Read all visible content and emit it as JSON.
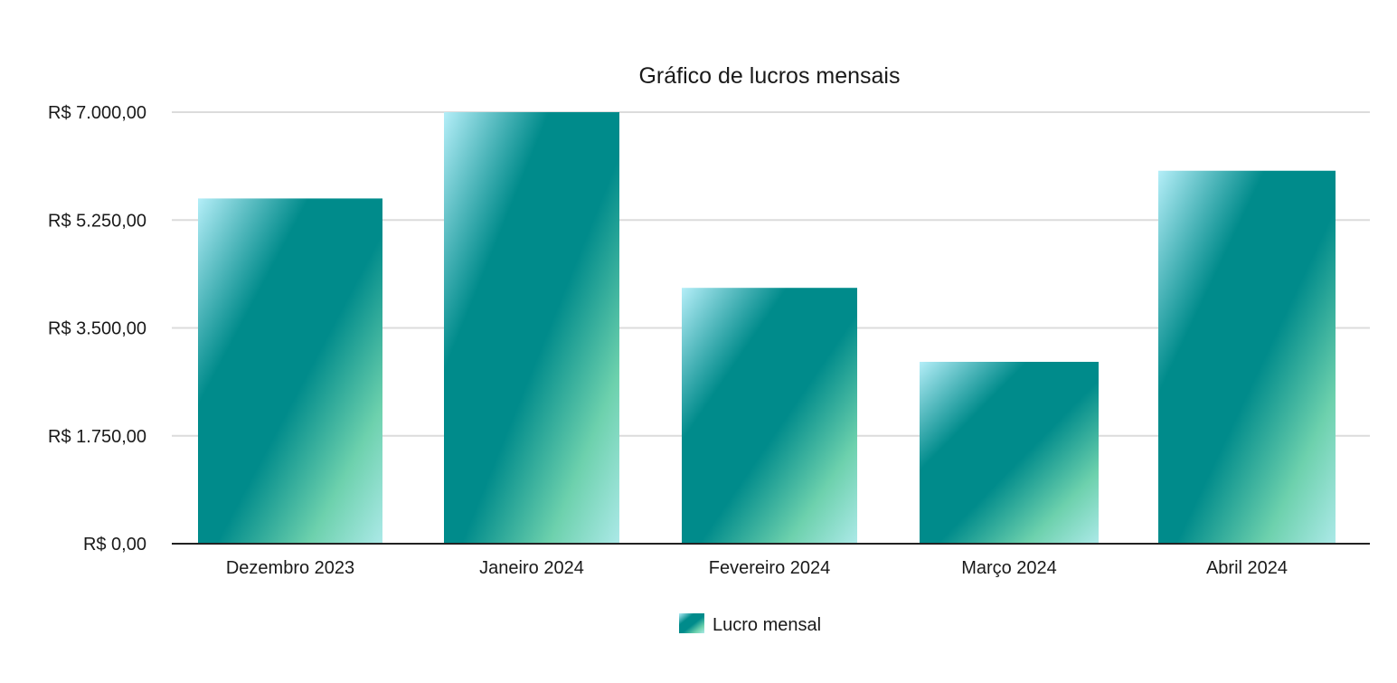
{
  "chart_data": {
    "type": "bar",
    "title": "Gráfico de lucros mensais",
    "xlabel": "",
    "ylabel": "",
    "categories": [
      "Dezembro 2023",
      "Janeiro 2024",
      "Fevereiro 2024",
      "Março 2024",
      "Abril 2024"
    ],
    "series": [
      {
        "name": "Lucro mensal",
        "values": [
          5600,
          7000,
          4150,
          2950,
          6050
        ]
      }
    ],
    "ylim": [
      0,
      7000
    ],
    "yticks": [
      0,
      1750,
      3500,
      5250,
      7000
    ],
    "ytick_labels": [
      "R$ 0,00",
      "R$ 1.750,00",
      "R$ 3.500,00",
      "R$ 5.250,00",
      "R$ 7.000,00"
    ],
    "grid": true,
    "legend_position": "bottom-center",
    "colors": {
      "bar_light": "#b4eef8",
      "bar_main": "#008b8b",
      "bar_mint": "#6dd1ad",
      "bar_pale": "#ace9e8",
      "grid": "#dcdcdc",
      "baseline": "#222222"
    }
  }
}
